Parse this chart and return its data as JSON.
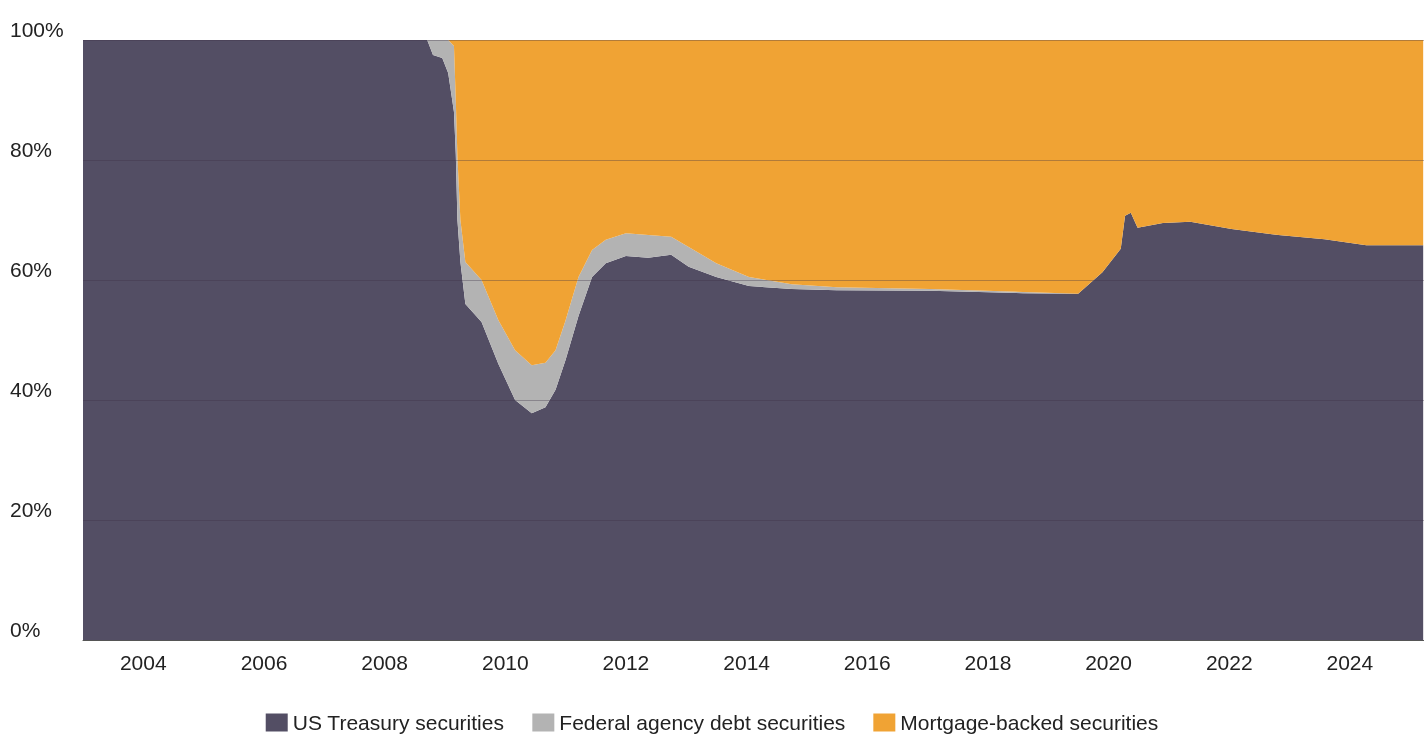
{
  "chart_data": {
    "type": "area",
    "stacked": true,
    "x": [
      "2003-01-01",
      "2008-09-15",
      "2008-10-20",
      "2008-12-15",
      "2009-01-20",
      "2009-02-24",
      "2009-03-07",
      "2009-03-17",
      "2009-04-04",
      "2009-05-04",
      "2009-08-10",
      "2009-11-20",
      "2010-03-01",
      "2010-06-10",
      "2010-09-01",
      "2010-11-01",
      "2011-01-01",
      "2011-03-20",
      "2011-06-10",
      "2011-09-01",
      "2012-01-01",
      "2012-05-15",
      "2012-10-01",
      "2013-01-15",
      "2013-07-01",
      "2014-01-15",
      "2014-10-01",
      "2015-07-01",
      "2017-01-15",
      "2018-08-01",
      "2019-07-01",
      "2019-11-25",
      "2020-03-15",
      "2020-04-10",
      "2020-05-15",
      "2020-06-25",
      "2020-11-25",
      "2021-05-10",
      "2022-01-15",
      "2022-10-25",
      "2023-08-01",
      "2024-04-10",
      "2025-03-20"
    ],
    "series": [
      {
        "name": "US Treasury securities",
        "color": "#534e64",
        "values": [
          100,
          100,
          97.5,
          97,
          94.5,
          88,
          81,
          70,
          63,
          56,
          53,
          46,
          40,
          37.8,
          38.8,
          41.7,
          46.7,
          54,
          60.5,
          62.8,
          64,
          63.7,
          64.2,
          62.2,
          60.5,
          59,
          58.5,
          58.3,
          58.2,
          57.8,
          57.7,
          61.3,
          65.2,
          70.7,
          71.2,
          68.7,
          69.5,
          69.7,
          68.5,
          67.5,
          66.8,
          65.8,
          65.8
        ]
      },
      {
        "name": "Federal agency debt securities",
        "color": "#b3b3b3",
        "values": [
          0,
          0,
          2.5,
          3,
          5.5,
          11,
          9,
          10.5,
          7,
          7,
          7,
          7.3,
          8.3,
          8,
          7.4,
          6.6,
          6.6,
          6.5,
          4.5,
          3.9,
          3.8,
          3.8,
          3,
          3.3,
          2.3,
          1.5,
          0.8,
          0.5,
          0.3,
          0.2,
          0,
          0,
          0,
          0,
          0,
          0,
          0,
          0,
          0,
          0,
          0,
          0,
          0
        ]
      },
      {
        "name": "Mortgage-backed securities",
        "color": "#f0a334",
        "values": [
          0,
          0,
          0,
          0,
          0,
          1,
          10,
          19.5,
          30,
          37,
          40,
          46.7,
          51.7,
          54.2,
          53.8,
          51.7,
          46.7,
          39.5,
          35,
          33.3,
          32.2,
          32.5,
          32.8,
          34.5,
          37.2,
          39.5,
          40.7,
          41.2,
          41.5,
          42,
          42.3,
          38.7,
          34.8,
          29.3,
          28.8,
          31.3,
          30.5,
          30.3,
          31.5,
          32.5,
          33.2,
          34.2,
          34.2
        ]
      }
    ],
    "xlim": [
      "2003-01-01",
      "2025-03-25"
    ],
    "xticks": [
      "2004",
      "2006",
      "2008",
      "2010",
      "2012",
      "2014",
      "2016",
      "2018",
      "2020",
      "2022",
      "2024"
    ],
    "ylim": [
      0,
      100
    ],
    "yticks": [
      {
        "value": 0,
        "label": "0%"
      },
      {
        "value": 20,
        "label": "20%"
      },
      {
        "value": 40,
        "label": "40%"
      },
      {
        "value": 60,
        "label": "60%"
      },
      {
        "value": 80,
        "label": "80%"
      },
      {
        "value": 100,
        "label": "100%"
      }
    ],
    "grid": "y",
    "legend": "bottom"
  }
}
